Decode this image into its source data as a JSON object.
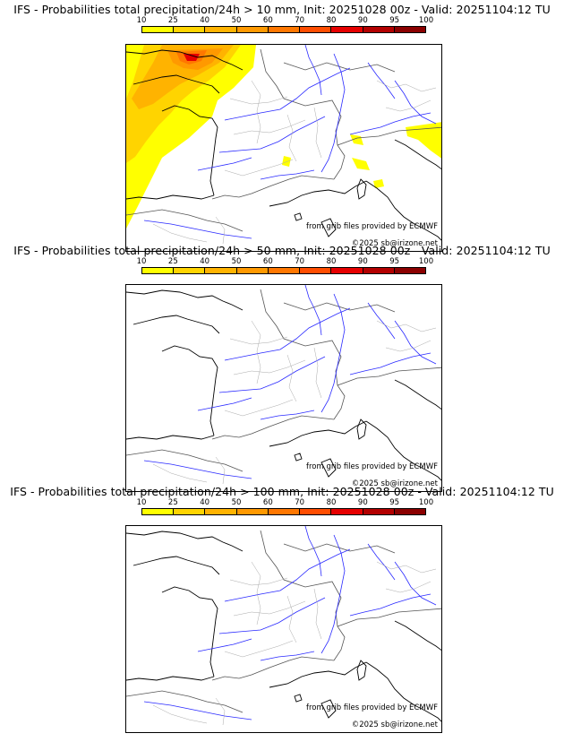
{
  "panels": [
    {
      "title": "IFS - Probabilities total precipitation/24h > 10 mm, Init: 20251028 00z - Valid: 20251104:12 TU",
      "threshold_mm": 10,
      "has_precip": true
    },
    {
      "title": "IFS - Probabilities total precipitation/24h > 50 mm, Init: 20251028 00z - Valid: 20251104:12 TU",
      "threshold_mm": 50,
      "has_precip": false
    },
    {
      "title": "IFS - Probabilities total precipitation/24h > 100 mm, Init: 20251028 00z - Valid: 20251104:12 TU",
      "threshold_mm": 100,
      "has_precip": false
    }
  ],
  "colorbar": {
    "ticks": [
      "10",
      "25",
      "40",
      "50",
      "60",
      "70",
      "80",
      "90",
      "95",
      "100"
    ],
    "colors": [
      "#ffff00",
      "#ffd400",
      "#ffb300",
      "#ff9900",
      "#ff7700",
      "#ff4d00",
      "#e60000",
      "#b30000",
      "#8b0000",
      "#5a0000"
    ]
  },
  "credit_source": "from grib files provided by ECMWF",
  "credit_copyright": "©2025 sb@irizone.net"
}
